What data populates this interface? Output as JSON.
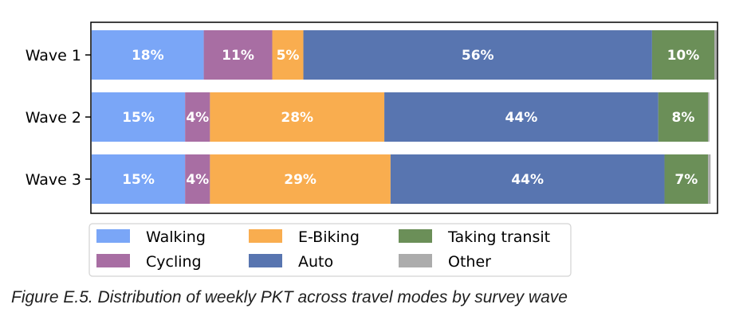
{
  "chart_data": {
    "type": "bar",
    "orientation": "horizontal",
    "stacked": true,
    "title": "",
    "xlabel": "",
    "ylabel": "",
    "xlim": [
      0,
      100
    ],
    "categories": [
      "Wave 1",
      "Wave 2",
      "Wave 3"
    ],
    "series": [
      {
        "name": "Walking",
        "color": "#7aa6f7",
        "values": [
          18,
          15,
          15
        ],
        "labels": [
          "18%",
          "15%",
          "15%"
        ]
      },
      {
        "name": "Cycling",
        "color": "#a86ea3",
        "values": [
          11,
          4,
          4
        ],
        "labels": [
          "11%",
          "4%",
          "4%"
        ]
      },
      {
        "name": "E-Biking",
        "color": "#f9ad4f",
        "values": [
          5,
          28,
          29
        ],
        "labels": [
          "5%",
          "28%",
          "29%"
        ]
      },
      {
        "name": "Auto",
        "color": "#5875b0",
        "values": [
          56,
          44,
          44
        ],
        "labels": [
          "56%",
          "44%",
          "44%"
        ]
      },
      {
        "name": "Taking transit",
        "color": "#6b8f58",
        "values": [
          10,
          8,
          7
        ],
        "labels": [
          "10%",
          "8%",
          "7%"
        ]
      },
      {
        "name": "Other",
        "color": "#acacac",
        "values": [
          0.4,
          0.2,
          0.4
        ],
        "labels": [
          "",
          "",
          ""
        ]
      }
    ],
    "legend": {
      "position": "bottom",
      "columns": 3,
      "order": [
        "Walking",
        "Cycling",
        "E-Biking",
        "Auto",
        "Taking transit",
        "Other"
      ]
    }
  },
  "caption": "Figure E.5. Distribution of weekly PKT across travel modes by survey wave"
}
